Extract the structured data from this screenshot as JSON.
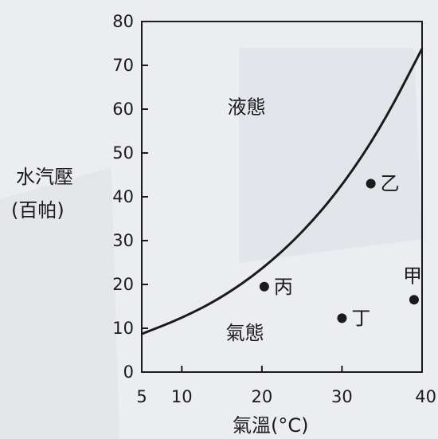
{
  "chart_data": {
    "type": "scatter",
    "ylabel_line1": "水汽壓",
    "ylabel_line2": "(百帕)",
    "xlabel": "氣溫(°C)",
    "xlim": [
      5,
      40
    ],
    "ylim": [
      0,
      80
    ],
    "x_ticks": [
      5,
      10,
      20,
      30,
      40
    ],
    "y_ticks": [
      0,
      10,
      20,
      30,
      40,
      50,
      60,
      70,
      80
    ],
    "grid": false,
    "curve": {
      "x": [
        5,
        10,
        15,
        20,
        25,
        30,
        35,
        40
      ],
      "y": [
        8.7,
        12.3,
        17.0,
        23.4,
        31.7,
        42.4,
        56.2,
        73.8
      ]
    },
    "region_labels": [
      {
        "text": "液態",
        "x": 15.7,
        "y": 59
      },
      {
        "text": "氣態",
        "x": 15.5,
        "y": 7.5
      }
    ],
    "points": [
      {
        "name": "甲",
        "x": 39,
        "y": 16.5
      },
      {
        "name": "乙",
        "x": 33.6,
        "y": 43
      },
      {
        "name": "丙",
        "x": 20.3,
        "y": 19.5
      },
      {
        "name": "丁",
        "x": 30,
        "y": 12.3
      }
    ],
    "colors": {
      "ink": "#1b1b1b",
      "background": "#ecedf0"
    }
  }
}
